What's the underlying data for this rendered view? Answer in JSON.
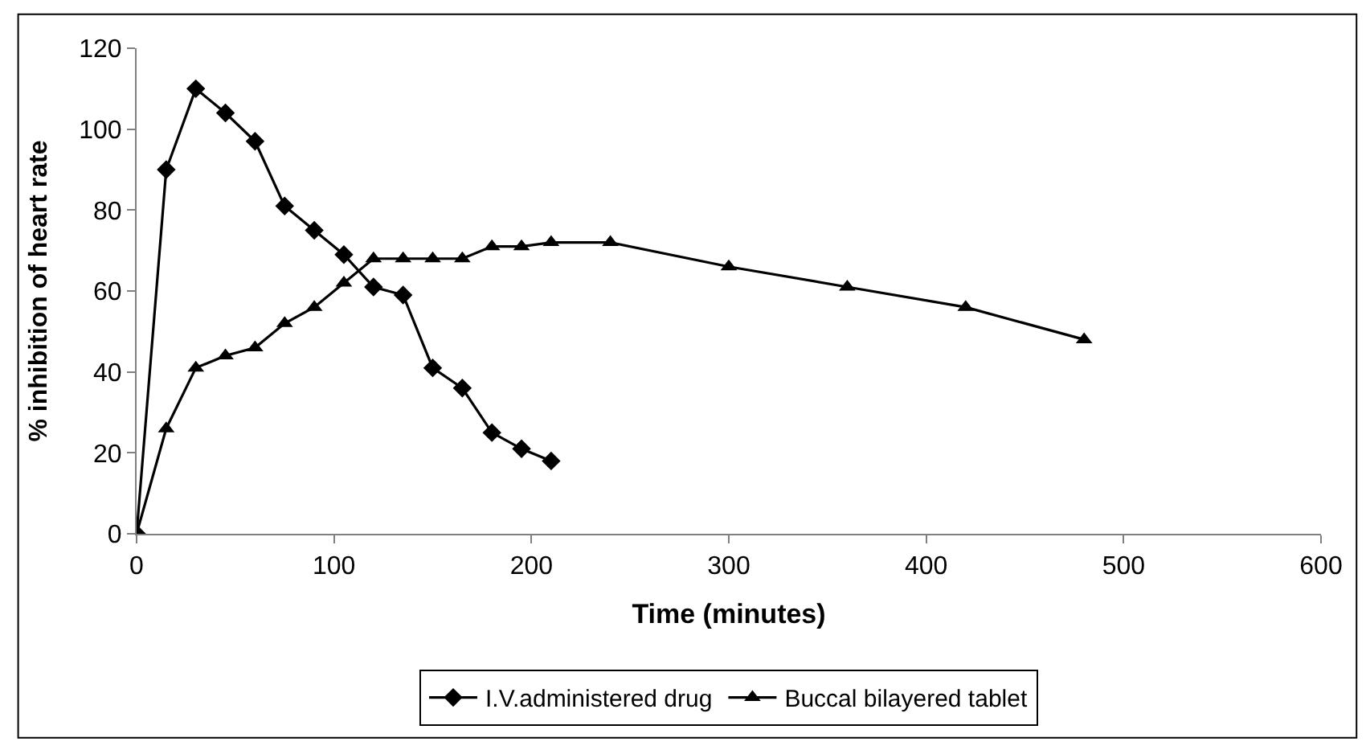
{
  "chart_data": {
    "type": "line",
    "xlabel": "Time (minutes)",
    "ylabel": "% inhibition of heart rate",
    "xlim": [
      0,
      600
    ],
    "xticks": [
      0,
      100,
      200,
      300,
      400,
      500,
      600
    ],
    "ylim": [
      0,
      120
    ],
    "yticks": [
      0,
      20,
      40,
      60,
      80,
      100,
      120
    ],
    "legend": "bottom",
    "line_style": "solid",
    "series": [
      {
        "name": "I.V.administered drug",
        "color": "#000000",
        "marker": "diamond",
        "x": [
          0,
          15,
          30,
          45,
          60,
          75,
          90,
          105,
          120,
          135,
          150,
          165,
          180,
          195,
          210
        ],
        "values": [
          0,
          90,
          110,
          104,
          97,
          81,
          75,
          69,
          61,
          59,
          41,
          36,
          25,
          21,
          18
        ]
      },
      {
        "name": "Buccal bilayered tablet",
        "color": "#000000",
        "marker": "triangle",
        "x": [
          0,
          15,
          30,
          45,
          60,
          75,
          90,
          105,
          120,
          135,
          150,
          165,
          180,
          195,
          210,
          240,
          300,
          360,
          420,
          480
        ],
        "values": [
          0,
          26,
          41,
          44,
          46,
          52,
          56,
          62,
          68,
          68,
          68,
          68,
          71,
          71,
          72,
          72,
          66,
          61,
          56,
          48
        ]
      }
    ]
  }
}
